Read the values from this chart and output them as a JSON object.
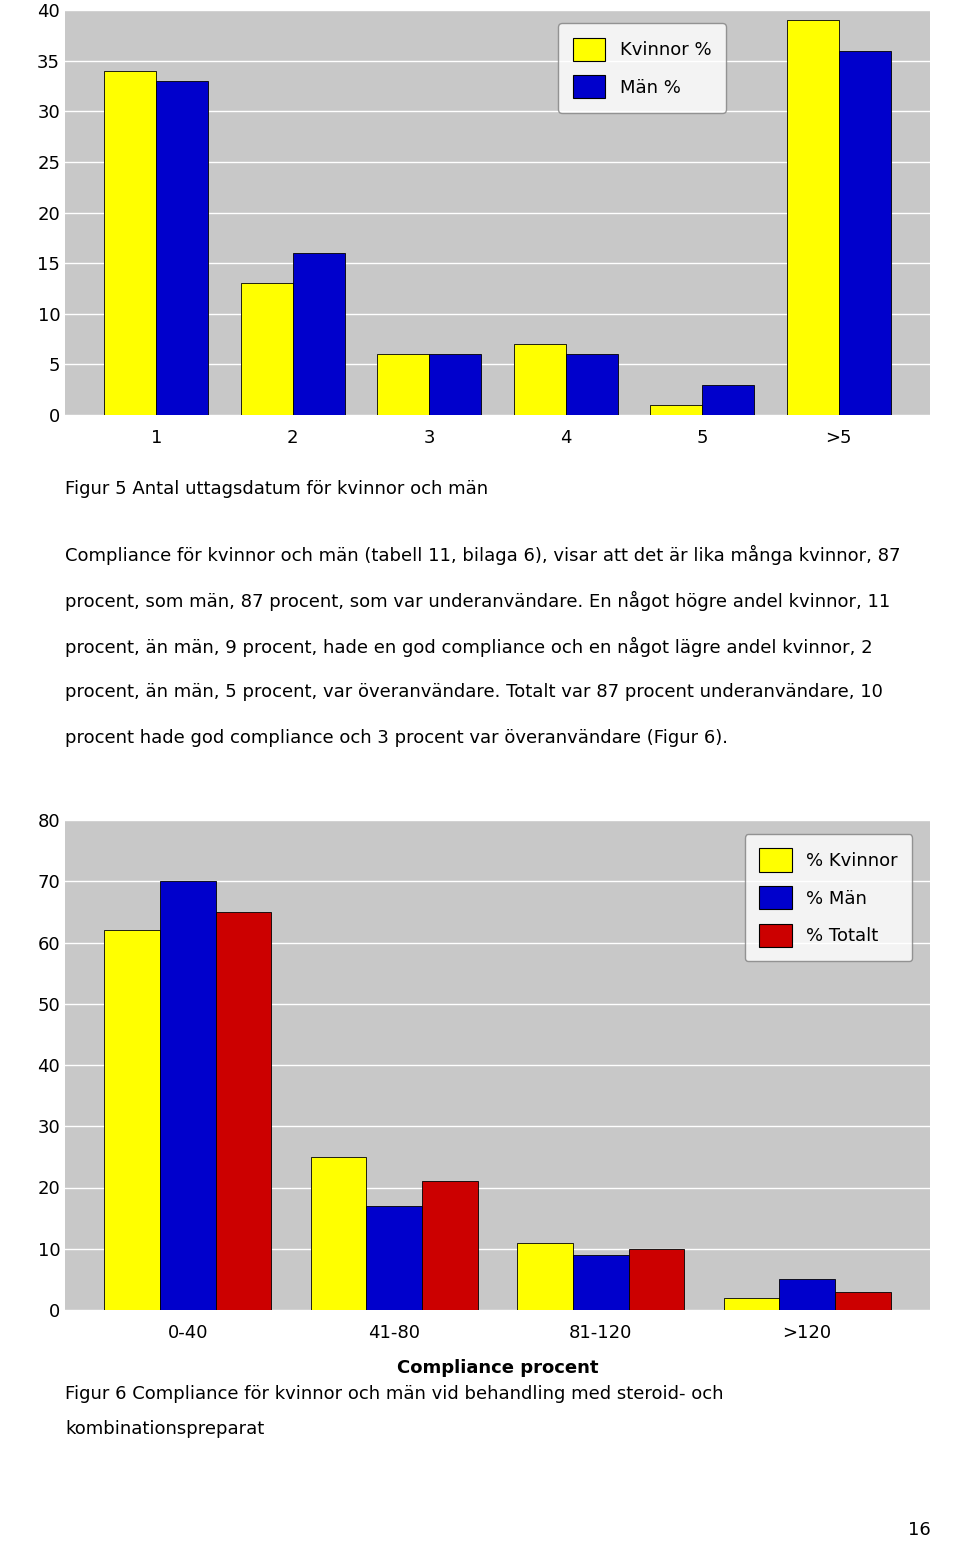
{
  "chart1": {
    "categories": [
      "1",
      "2",
      "3",
      "4",
      "5",
      ">5"
    ],
    "kvinnor": [
      34,
      13,
      6,
      7,
      1,
      39
    ],
    "man": [
      33,
      16,
      6,
      6,
      3,
      36
    ],
    "ylim": [
      0,
      40
    ],
    "yticks": [
      0,
      5,
      10,
      15,
      20,
      25,
      30,
      35,
      40
    ],
    "legend_labels": [
      "Kvinnor %",
      "Män %"
    ],
    "bar_color_kvinnor": "#FFFF00",
    "bar_color_man": "#0000CC",
    "figure_caption": "Figur 5 Antal uttagsdatum för kvinnor och män"
  },
  "text_paragraph": [
    "Compliance för kvinnor och män (tabell 11, bilaga 6), visar att det är lika många kvinnor, 87",
    "procent, som män, 87 procent, som var underanvändare. En något högre andel kvinnor, 11",
    "procent, än män, 9 procent, hade en god compliance och en något lägre andel kvinnor, 2",
    "procent, än män, 5 procent, var överanvändare. Totalt var 87 procent underanvändare, 10",
    "procent hade god compliance och 3 procent var överanvändare (Figur 6)."
  ],
  "chart2": {
    "categories": [
      "0-40",
      "41-80",
      "81-120",
      ">120"
    ],
    "kvinnor": [
      62,
      25,
      11,
      2
    ],
    "man": [
      70,
      17,
      9,
      5
    ],
    "totalt": [
      65,
      21,
      10,
      3
    ],
    "ylim": [
      0,
      80
    ],
    "yticks": [
      0,
      10,
      20,
      30,
      40,
      50,
      60,
      70,
      80
    ],
    "xlabel": "Compliance procent",
    "legend_labels": [
      "% Kvinnor",
      "% Män",
      "% Totalt"
    ],
    "bar_color_kvinnor": "#FFFF00",
    "bar_color_man": "#0000CC",
    "bar_color_totalt": "#CC0000",
    "figure_caption_line1": "Figur 6 Compliance för kvinnor och män vid behandling med steroid- och",
    "figure_caption_line2": "kombinationspreparat"
  },
  "page_number": "16",
  "plot_bg_color": "#C8C8C8"
}
